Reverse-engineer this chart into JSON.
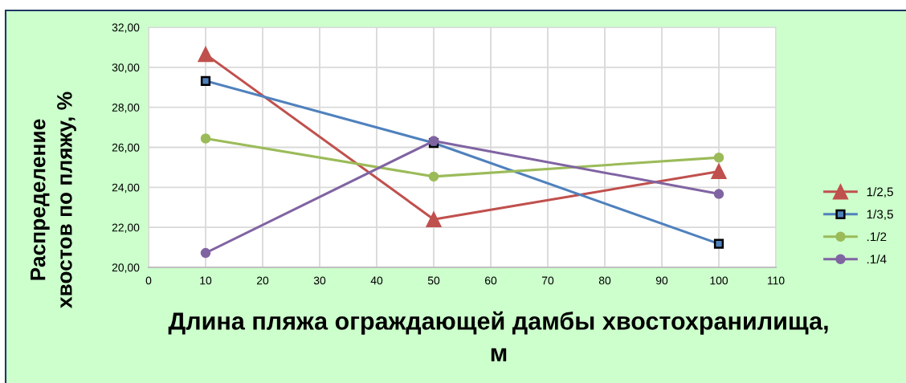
{
  "chart_data": {
    "type": "line",
    "xlabel": "Длина пляжа ограждающей дамбы хвостохранилища,\nм",
    "ylabel": "Распределение\nхвостов по пляжу, %",
    "x": [
      10,
      50,
      100
    ],
    "series": [
      {
        "name": "1/2,5",
        "color": "#c0504d",
        "marker": "triangle",
        "values": [
          30.65,
          22.4,
          24.8
        ]
      },
      {
        "name": "1/3,5",
        "color": "#4f81bd",
        "marker": "square",
        "values": [
          29.32,
          26.22,
          21.18
        ]
      },
      {
        "name": ".1/2",
        "color": "#9bbb59",
        "marker": "circle",
        "values": [
          26.44,
          24.54,
          25.49
        ]
      },
      {
        "name": ".1/4",
        "color": "#8064a2",
        "marker": "circle",
        "values": [
          20.72,
          26.32,
          23.67
        ]
      }
    ],
    "xlim": [
      0,
      110
    ],
    "xticks": [
      0,
      10,
      20,
      30,
      40,
      50,
      60,
      70,
      80,
      90,
      100,
      110
    ],
    "ylim": [
      20,
      32
    ],
    "yticks": [
      {
        "value": 20,
        "label": "20,00"
      },
      {
        "value": 22,
        "label": "22,00"
      },
      {
        "value": 24,
        "label": "24,00"
      },
      {
        "value": 26,
        "label": "26,00"
      },
      {
        "value": 28,
        "label": "28,00"
      },
      {
        "value": 30,
        "label": "30,00"
      },
      {
        "value": 32,
        "label": "32,00"
      }
    ],
    "grid": true,
    "legend": "right",
    "line_style": "solid"
  }
}
